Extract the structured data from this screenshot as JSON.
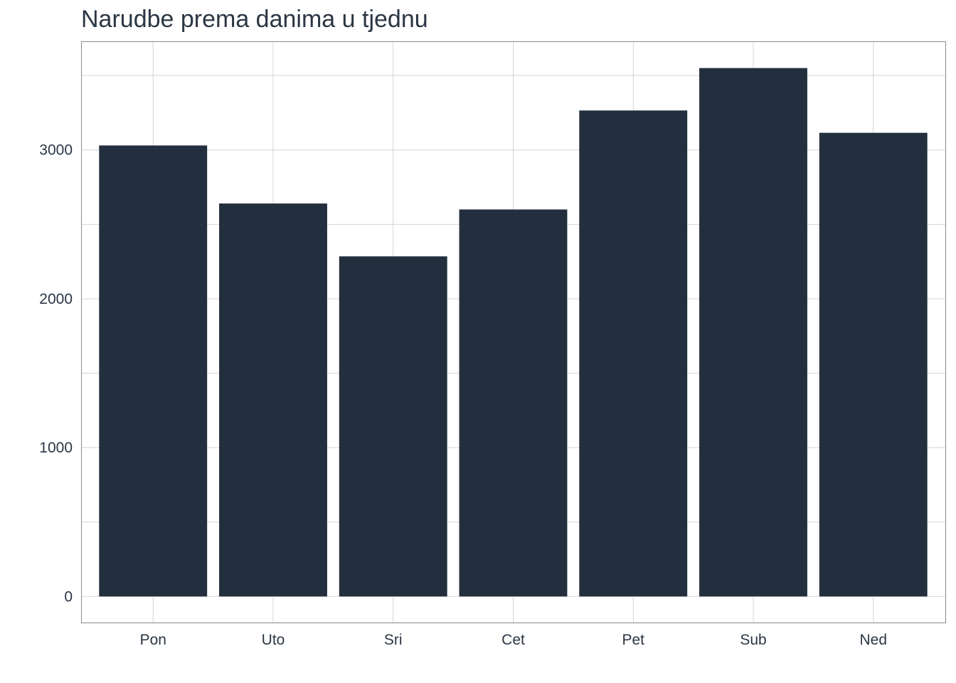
{
  "chart_data": {
    "type": "bar",
    "title": "Narudbe prema danima u tjednu",
    "xlabel": "",
    "ylabel": "",
    "categories": [
      "Pon",
      "Uto",
      "Sri",
      "Cet",
      "Pet",
      "Sub",
      "Ned"
    ],
    "values": [
      3030,
      2640,
      2285,
      2600,
      3265,
      3550,
      3115
    ],
    "ylim": [
      -175,
      3730
    ],
    "yticks": [
      0,
      1000,
      2000,
      3000
    ],
    "grid": true,
    "legend": "none",
    "colors": {
      "bar": "#232f3e",
      "grid": "#d4d4d4",
      "panel_border": "#8a8a8a",
      "text": "#2b3644"
    }
  }
}
